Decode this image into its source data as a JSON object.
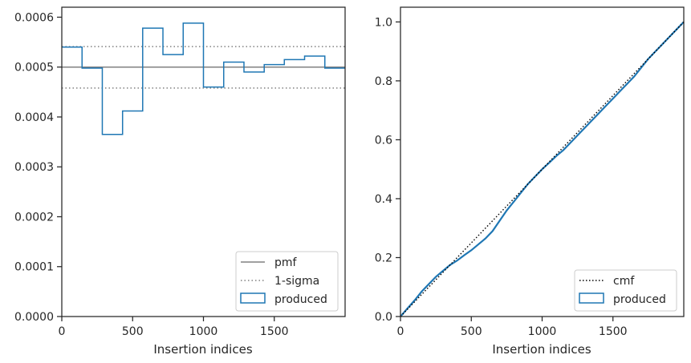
{
  "chart_data": [
    {
      "type": "step",
      "xlabel": "Insertion indices",
      "ylabel": "",
      "xlim": [
        0,
        2000
      ],
      "ylim": [
        0,
        0.00062
      ],
      "xticks": [
        0,
        500,
        1000,
        1500
      ],
      "xtick_labels": [
        "0",
        "500",
        "1000",
        "1500"
      ],
      "yticks": [
        0,
        0.0001,
        0.0002,
        0.0003,
        0.0004,
        0.0005,
        0.0006
      ],
      "ytick_labels": [
        "0.0000",
        "0.0001",
        "0.0002",
        "0.0003",
        "0.0004",
        "0.0005",
        "0.0006"
      ],
      "pmf": 0.0005,
      "sigma_upper": 0.000541,
      "sigma_lower": 0.000458,
      "bin_edges": [
        0,
        143,
        286,
        429,
        571,
        714,
        857,
        1000,
        1143,
        1286,
        1429,
        1571,
        1714,
        1857,
        2000
      ],
      "values": [
        0.00054,
        0.000498,
        0.000365,
        0.000412,
        0.000578,
        0.000525,
        0.000588,
        0.00046,
        0.00051,
        0.00049,
        0.000505,
        0.000515,
        0.000522,
        0.000498
      ],
      "legend": {
        "position": "lower right",
        "entries": [
          {
            "label": "pmf",
            "style": "solid",
            "color": "#808080"
          },
          {
            "label": "1-sigma",
            "style": "dotted",
            "color": "#808080"
          },
          {
            "label": "produced",
            "style": "box",
            "color": "#1f77b4"
          }
        ]
      }
    },
    {
      "type": "line",
      "xlabel": "Insertion indices",
      "ylabel": "",
      "xlim": [
        0,
        2000
      ],
      "ylim": [
        0,
        1.05
      ],
      "xticks": [
        0,
        500,
        1000,
        1500
      ],
      "xtick_labels": [
        "0",
        "500",
        "1000",
        "1500"
      ],
      "yticks": [
        0,
        0.2,
        0.4,
        0.6,
        0.8,
        1.0
      ],
      "ytick_labels": [
        "0.0",
        "0.2",
        "0.4",
        "0.6",
        "0.8",
        "1.0"
      ],
      "cmf": {
        "x": [
          0,
          2000
        ],
        "y": [
          0,
          1.0
        ]
      },
      "produced": {
        "x": [
          0,
          50,
          100,
          150,
          200,
          250,
          300,
          350,
          400,
          450,
          500,
          550,
          600,
          650,
          700,
          750,
          800,
          850,
          900,
          950,
          1000,
          1050,
          1100,
          1150,
          1200,
          1250,
          1300,
          1350,
          1400,
          1450,
          1500,
          1550,
          1600,
          1650,
          1700,
          1750,
          1800,
          1850,
          1900,
          1950,
          2000
        ],
        "y": [
          0,
          0.028,
          0.055,
          0.085,
          0.11,
          0.135,
          0.155,
          0.175,
          0.19,
          0.208,
          0.225,
          0.245,
          0.265,
          0.29,
          0.325,
          0.36,
          0.39,
          0.42,
          0.45,
          0.475,
          0.5,
          0.522,
          0.545,
          0.565,
          0.59,
          0.615,
          0.64,
          0.665,
          0.69,
          0.715,
          0.74,
          0.765,
          0.79,
          0.815,
          0.845,
          0.875,
          0.9,
          0.925,
          0.95,
          0.975,
          1.0
        ]
      },
      "legend": {
        "position": "lower right",
        "entries": [
          {
            "label": "cmf",
            "style": "dotted",
            "color": "#000000"
          },
          {
            "label": "produced",
            "style": "box",
            "color": "#1f77b4"
          }
        ]
      }
    }
  ]
}
